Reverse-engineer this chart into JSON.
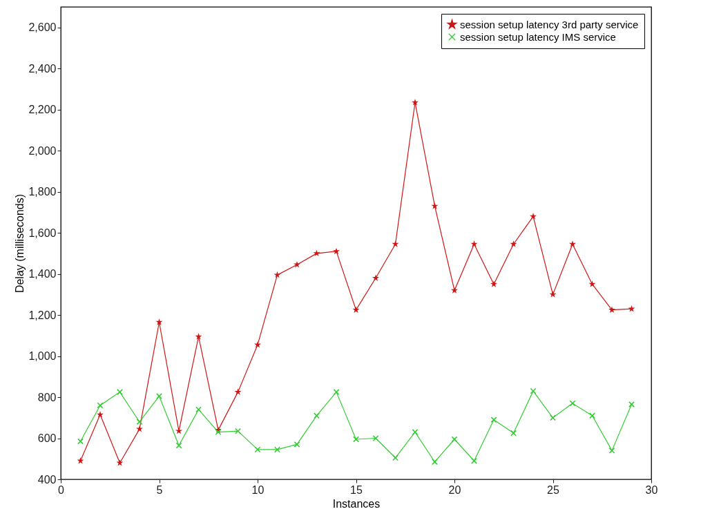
{
  "chart_data": {
    "type": "line",
    "xlabel": "Instances",
    "ylabel": "Delay (milliseconds)",
    "x": [
      1,
      2,
      3,
      4,
      5,
      6,
      7,
      8,
      9,
      10,
      11,
      12,
      13,
      14,
      15,
      16,
      17,
      18,
      19,
      20,
      21,
      22,
      23,
      24,
      25,
      26,
      27,
      28,
      29
    ],
    "series": [
      {
        "name": "session setup latency 3rd party service",
        "color": "#d01515",
        "marker": "star",
        "values": [
          490,
          715,
          480,
          645,
          1165,
          635,
          1095,
          640,
          825,
          1055,
          1395,
          1445,
          1500,
          1510,
          1225,
          1380,
          1545,
          2235,
          1730,
          1320,
          1545,
          1350,
          1545,
          1680,
          1300,
          1545,
          1350,
          1225,
          1230
        ]
      },
      {
        "name": "session setup latency IMS service",
        "color": "#33cc33",
        "marker": "cross",
        "values": [
          585,
          760,
          825,
          680,
          805,
          565,
          740,
          630,
          635,
          545,
          545,
          570,
          710,
          825,
          595,
          600,
          505,
          630,
          485,
          595,
          490,
          690,
          625,
          830,
          700,
          770,
          710,
          540,
          765
        ]
      }
    ],
    "xlim": [
      0,
      30
    ],
    "xticks": [
      0,
      5,
      10,
      15,
      20,
      25,
      30
    ],
    "ylim": [
      400,
      2700
    ],
    "yticks": [
      {
        "value": 400,
        "label": "400"
      },
      {
        "value": 600,
        "label": "600"
      },
      {
        "value": 800,
        "label": "800"
      },
      {
        "value": 1000,
        "label": "1,000"
      },
      {
        "value": 1200,
        "label": "1,200"
      },
      {
        "value": 1400,
        "label": "1,400"
      },
      {
        "value": 1600,
        "label": "1,600"
      },
      {
        "value": 1800,
        "label": "1,800"
      },
      {
        "value": 2000,
        "label": "2,000"
      },
      {
        "value": 2200,
        "label": "2,200"
      },
      {
        "value": 2400,
        "label": "2,400"
      },
      {
        "value": 2600,
        "label": "2,600"
      }
    ],
    "grid": false,
    "legend": "top right",
    "line_style": "solid"
  }
}
